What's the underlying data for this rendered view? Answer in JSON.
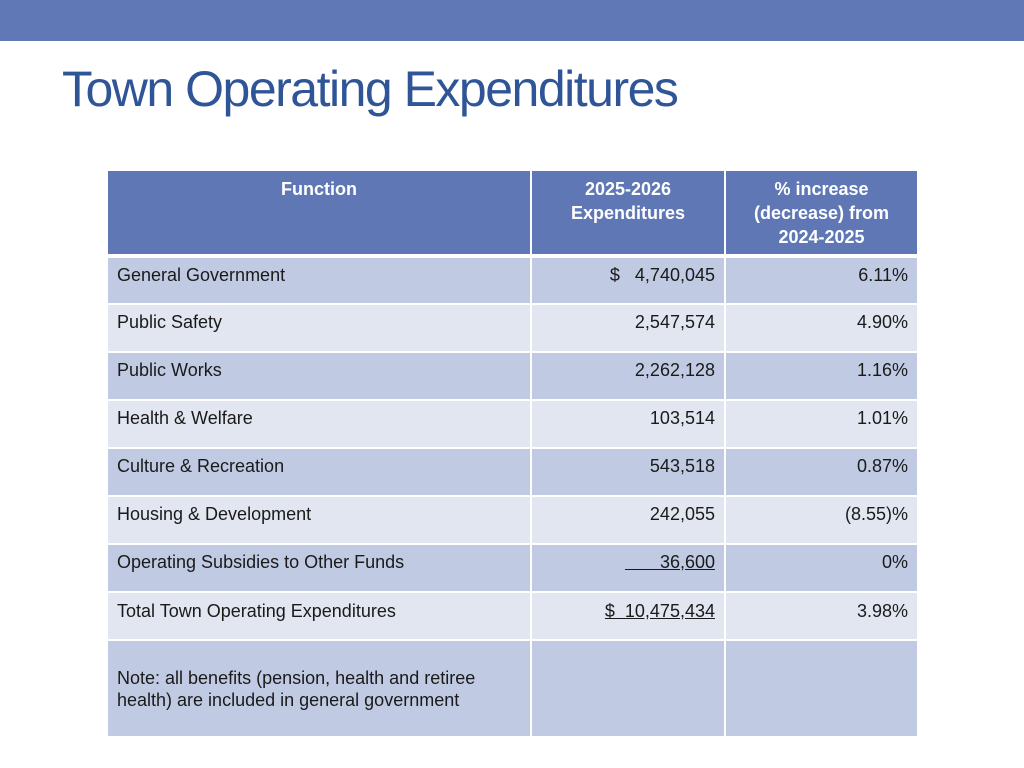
{
  "slide": {
    "title": "Town Operating Expenditures"
  },
  "table": {
    "headers": {
      "function": "Function",
      "expenditures_line1": "2025-2026",
      "expenditures_line2": "Expenditures",
      "pct_line1": "% increase",
      "pct_line2": "(decrease) from",
      "pct_line3": "2024-2025"
    },
    "rows": [
      {
        "function": "General Government",
        "amount": "$   4,740,045",
        "pct": "6.11%"
      },
      {
        "function": "Public Safety",
        "amount": "2,547,574",
        "pct": "4.90%"
      },
      {
        "function": "Public Works",
        "amount": "2,262,128",
        "pct": "1.16%"
      },
      {
        "function": "Health & Welfare",
        "amount": "103,514",
        "pct": "1.01%"
      },
      {
        "function": "Culture & Recreation",
        "amount": "543,518",
        "pct": "0.87%"
      },
      {
        "function": "Housing & Development",
        "amount": "242,055",
        "pct": "(8.55)%"
      },
      {
        "function": "Operating Subsidies to Other Funds",
        "amount": "       36,600",
        "pct": "0%"
      },
      {
        "function": "Total Town Operating Expenditures",
        "amount": "$  10,475,434",
        "pct": "3.98%"
      }
    ],
    "note": {
      "text": "Note:  all benefits (pension, health and retiree health) are included in general government",
      "amount": "",
      "pct": ""
    }
  },
  "colors": {
    "header_bar": "#6079b6",
    "title": "#2f5597",
    "table_header": "#5f78b5",
    "row_dark": "#c0cbe3",
    "row_light": "#e1e6f1"
  }
}
